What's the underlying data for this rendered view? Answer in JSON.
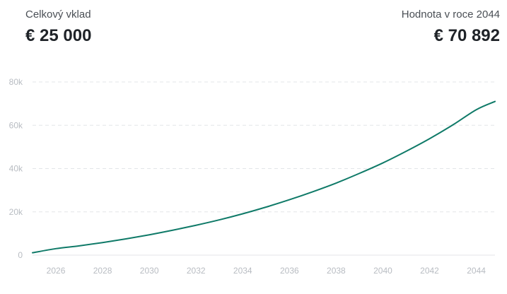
{
  "summary": {
    "deposit_label": "Celkový vklad",
    "deposit_value": "€ 25 000",
    "future_label": "Hodnota v roce 2044",
    "future_value": "€ 70 892"
  },
  "chart_data": {
    "type": "line",
    "title": "",
    "xlabel": "",
    "ylabel": "",
    "xlim": [
      2025,
      2044.8
    ],
    "ylim": [
      0,
      80000
    ],
    "grid": true,
    "legend": "none",
    "x_ticks": [
      2026,
      2028,
      2030,
      2032,
      2034,
      2036,
      2038,
      2040,
      2042,
      2044
    ],
    "x_tick_labels": [
      "2026",
      "2028",
      "2030",
      "2032",
      "2034",
      "2036",
      "2038",
      "2040",
      "2042",
      "2044"
    ],
    "y_ticks": [
      0,
      20000,
      40000,
      60000,
      80000
    ],
    "y_tick_labels": [
      "0",
      "20k",
      "40k",
      "60k",
      "80k"
    ],
    "colors": {
      "line": "#0f7a68",
      "grid": "#e3e5e8",
      "axis": "#e3e5e8"
    },
    "series": [
      {
        "x": [
          2025,
          2026,
          2027,
          2028,
          2029,
          2030,
          2031,
          2032,
          2033,
          2034,
          2035,
          2036,
          2037,
          2038,
          2039,
          2040,
          2041,
          2042,
          2043,
          2044,
          2044.8
        ],
        "values": [
          1100,
          3000,
          4300,
          5800,
          7500,
          9400,
          11500,
          13800,
          16300,
          19100,
          22200,
          25600,
          29300,
          33300,
          37800,
          42600,
          48000,
          53800,
          60200,
          67200,
          71000
        ]
      }
    ]
  }
}
